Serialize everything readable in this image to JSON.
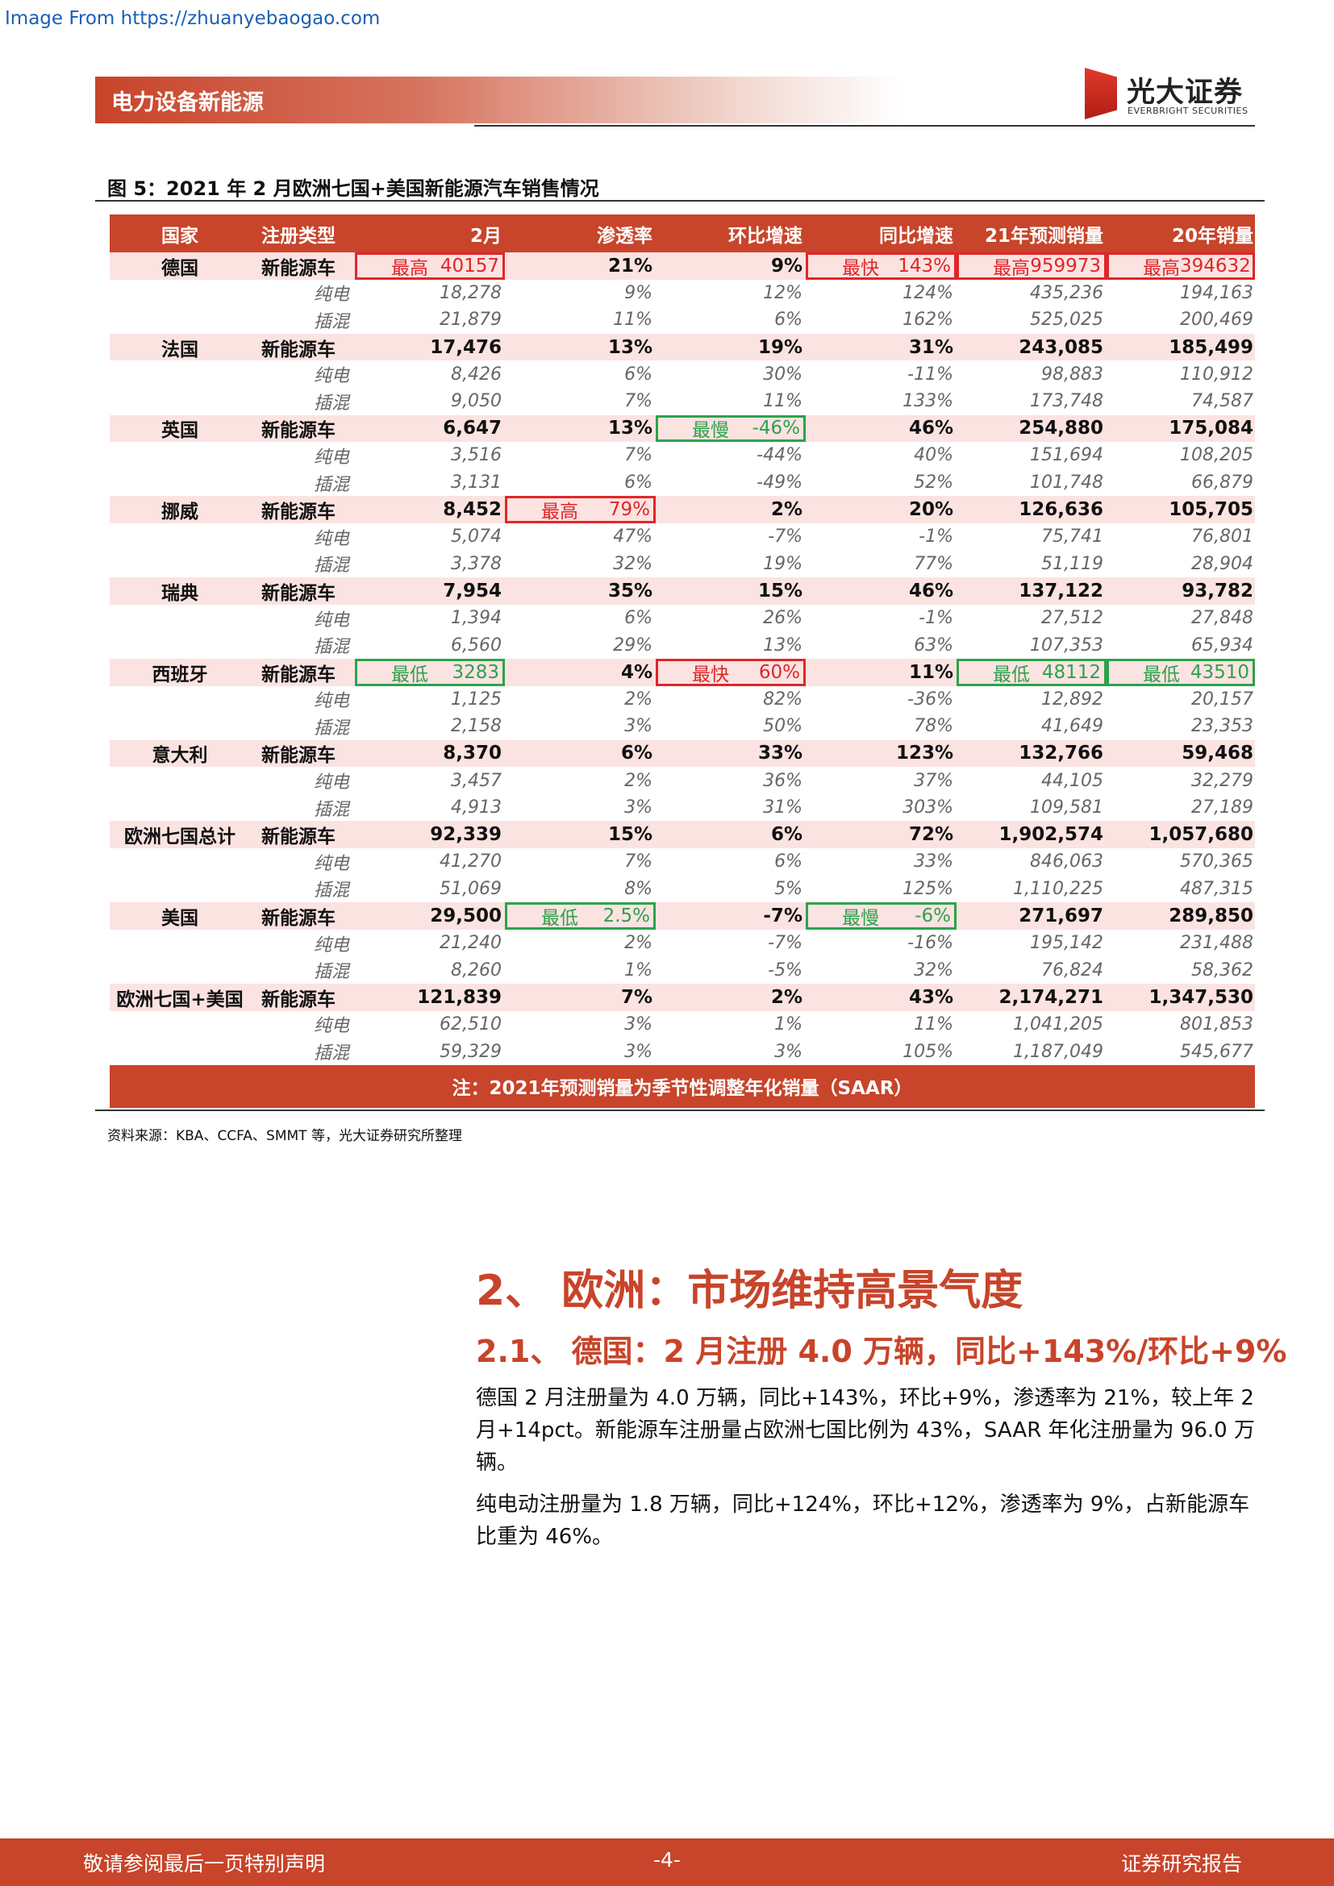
{
  "source_url": "Image From https://zhuanyebaogao.com",
  "header": {
    "section": "电力设备新能源",
    "logo_cn": "光大证券",
    "logo_en": "EVERBRIGHT SECURITIES"
  },
  "figure": {
    "title": "图 5：2021 年 2 月欧洲七国+美国新能源汽车销售情况",
    "columns": [
      "国家",
      "注册类型",
      "2月",
      "渗透率",
      "环比增速",
      "同比增速",
      "21年预测销量",
      "20年销量"
    ],
    "rows": [
      {
        "cells": [
          "德国",
          "新能源车",
          "40157",
          "21%",
          "9%",
          "143%",
          "959973",
          "394632"
        ],
        "type": "nev",
        "hl": {
          "2": [
            "最高",
            "red"
          ],
          "5": [
            "最快",
            "red"
          ],
          "6": [
            "最高",
            "red"
          ],
          "7": [
            "最高",
            "red"
          ]
        }
      },
      {
        "cells": [
          "",
          "纯电",
          "18,278",
          "9%",
          "12%",
          "124%",
          "435,236",
          "194,163"
        ],
        "type": "sub"
      },
      {
        "cells": [
          "",
          "插混",
          "21,879",
          "11%",
          "6%",
          "162%",
          "525,025",
          "200,469"
        ],
        "type": "sub"
      },
      {
        "cells": [
          "法国",
          "新能源车",
          "17,476",
          "13%",
          "19%",
          "31%",
          "243,085",
          "185,499"
        ],
        "type": "nev"
      },
      {
        "cells": [
          "",
          "纯电",
          "8,426",
          "6%",
          "30%",
          "-11%",
          "98,883",
          "110,912"
        ],
        "type": "sub"
      },
      {
        "cells": [
          "",
          "插混",
          "9,050",
          "7%",
          "11%",
          "133%",
          "173,748",
          "74,587"
        ],
        "type": "sub"
      },
      {
        "cells": [
          "英国",
          "新能源车",
          "6,647",
          "13%",
          "-46%",
          "46%",
          "254,880",
          "175,084"
        ],
        "type": "nev",
        "hl": {
          "4": [
            "最慢",
            "green"
          ]
        }
      },
      {
        "cells": [
          "",
          "纯电",
          "3,516",
          "7%",
          "-44%",
          "40%",
          "151,694",
          "108,205"
        ],
        "type": "sub"
      },
      {
        "cells": [
          "",
          "插混",
          "3,131",
          "6%",
          "-49%",
          "52%",
          "101,748",
          "66,879"
        ],
        "type": "sub"
      },
      {
        "cells": [
          "挪威",
          "新能源车",
          "8,452",
          "79%",
          "2%",
          "20%",
          "126,636",
          "105,705"
        ],
        "type": "nev",
        "hl": {
          "3": [
            "最高",
            "red"
          ]
        }
      },
      {
        "cells": [
          "",
          "纯电",
          "5,074",
          "47%",
          "-7%",
          "-1%",
          "75,741",
          "76,801"
        ],
        "type": "sub"
      },
      {
        "cells": [
          "",
          "插混",
          "3,378",
          "32%",
          "19%",
          "77%",
          "51,119",
          "28,904"
        ],
        "type": "sub"
      },
      {
        "cells": [
          "瑞典",
          "新能源车",
          "7,954",
          "35%",
          "15%",
          "46%",
          "137,122",
          "93,782"
        ],
        "type": "nev"
      },
      {
        "cells": [
          "",
          "纯电",
          "1,394",
          "6%",
          "26%",
          "-1%",
          "27,512",
          "27,848"
        ],
        "type": "sub"
      },
      {
        "cells": [
          "",
          "插混",
          "6,560",
          "29%",
          "13%",
          "63%",
          "107,353",
          "65,934"
        ],
        "type": "sub"
      },
      {
        "cells": [
          "西班牙",
          "新能源车",
          "3283",
          "4%",
          "60%",
          "11%",
          "48112",
          "43510"
        ],
        "type": "nev",
        "hl": {
          "2": [
            "最低",
            "green"
          ],
          "4": [
            "最快",
            "red"
          ],
          "6": [
            "最低",
            "green"
          ],
          "7": [
            "最低",
            "green"
          ]
        }
      },
      {
        "cells": [
          "",
          "纯电",
          "1,125",
          "2%",
          "82%",
          "-36%",
          "12,892",
          "20,157"
        ],
        "type": "sub"
      },
      {
        "cells": [
          "",
          "插混",
          "2,158",
          "3%",
          "50%",
          "78%",
          "41,649",
          "23,353"
        ],
        "type": "sub"
      },
      {
        "cells": [
          "意大利",
          "新能源车",
          "8,370",
          "6%",
          "33%",
          "123%",
          "132,766",
          "59,468"
        ],
        "type": "nev"
      },
      {
        "cells": [
          "",
          "纯电",
          "3,457",
          "2%",
          "36%",
          "37%",
          "44,105",
          "32,279"
        ],
        "type": "sub"
      },
      {
        "cells": [
          "",
          "插混",
          "4,913",
          "3%",
          "31%",
          "303%",
          "109,581",
          "27,189"
        ],
        "type": "sub"
      },
      {
        "cells": [
          "欧洲七国总计",
          "新能源车",
          "92,339",
          "15%",
          "6%",
          "72%",
          "1,902,574",
          "1,057,680"
        ],
        "type": "nev"
      },
      {
        "cells": [
          "",
          "纯电",
          "41,270",
          "7%",
          "6%",
          "33%",
          "846,063",
          "570,365"
        ],
        "type": "sub"
      },
      {
        "cells": [
          "",
          "插混",
          "51,069",
          "8%",
          "5%",
          "125%",
          "1,110,225",
          "487,315"
        ],
        "type": "sub"
      },
      {
        "cells": [
          "美国",
          "新能源车",
          "29,500",
          "2.5%",
          "-7%",
          "-6%",
          "271,697",
          "289,850"
        ],
        "type": "nev",
        "hl": {
          "3": [
            "最低",
            "green"
          ],
          "5": [
            "最慢",
            "green"
          ]
        }
      },
      {
        "cells": [
          "",
          "纯电",
          "21,240",
          "2%",
          "-7%",
          "-16%",
          "195,142",
          "231,488"
        ],
        "type": "sub"
      },
      {
        "cells": [
          "",
          "插混",
          "8,260",
          "1%",
          "-5%",
          "32%",
          "76,824",
          "58,362"
        ],
        "type": "sub"
      },
      {
        "cells": [
          "欧洲七国+美国",
          "新能源车",
          "121,839",
          "7%",
          "2%",
          "43%",
          "2,174,271",
          "1,347,530"
        ],
        "type": "nev"
      },
      {
        "cells": [
          "",
          "纯电",
          "62,510",
          "3%",
          "1%",
          "11%",
          "1,041,205",
          "801,853"
        ],
        "type": "sub"
      },
      {
        "cells": [
          "",
          "插混",
          "59,329",
          "3%",
          "3%",
          "105%",
          "1,187,049",
          "545,677"
        ],
        "type": "sub"
      }
    ],
    "footnote": "注：2021年预测销量为季节性调整年化销量（SAAR）",
    "source": "资料来源：KBA、CCFA、SMMT 等，光大证券研究所整理"
  },
  "section": {
    "h2": "2、 欧洲：市场维持高景气度",
    "h3": "2.1、  德国：2 月注册 4.0 万辆，同比+143%/环比+9%",
    "p1": "德国 2 月注册量为 4.0 万辆，同比+143%，环比+9%，渗透率为 21%，较上年 2 月+14pct。新能源车注册量占欧洲七国比例为 43%，SAAR 年化注册量为 96.0 万辆。",
    "p2": "纯电动注册量为 1.8 万辆，同比+124%，环比+12%，渗透率为 9%，占新能源车比重为 46%。"
  },
  "footer": {
    "left": "敬请参阅最后一页特别声明",
    "center": "-4-",
    "right": "证券研究报告"
  },
  "colors": {
    "accent": "#c8442a",
    "highlight_red": "#e0262a",
    "highlight_green": "#2da24b",
    "row_tint": "#fbe3e1"
  }
}
